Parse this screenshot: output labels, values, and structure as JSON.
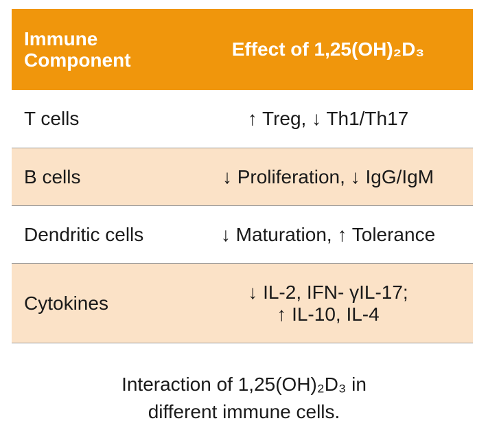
{
  "table": {
    "header": {
      "left": [
        "Immune",
        "Component"
      ],
      "right": "Effect of 1,25(OH)₂D₃"
    },
    "rows": [
      {
        "component": "T cells",
        "effect": [
          "↑ Treg, ↓ Th1/Th17"
        ]
      },
      {
        "component": "B cells",
        "effect": [
          "↓ Proliferation, ↓ IgG/IgM"
        ]
      },
      {
        "component": "Dendritic cells",
        "effect": [
          "↓ Maturation, ↑ Tolerance"
        ]
      },
      {
        "component": "Cytokines",
        "effect": [
          "↓ IL-2, IFN-  γIL-17;",
          "↑ IL-10, IL-4"
        ]
      }
    ]
  },
  "caption": [
    "Interaction of 1,25(OH)₂D₃ in",
    "different immune cells."
  ],
  "colors": {
    "header_bg": "#f0960c",
    "shaded_row_bg": "#fbe2c7",
    "header_text": "#ffffff"
  }
}
